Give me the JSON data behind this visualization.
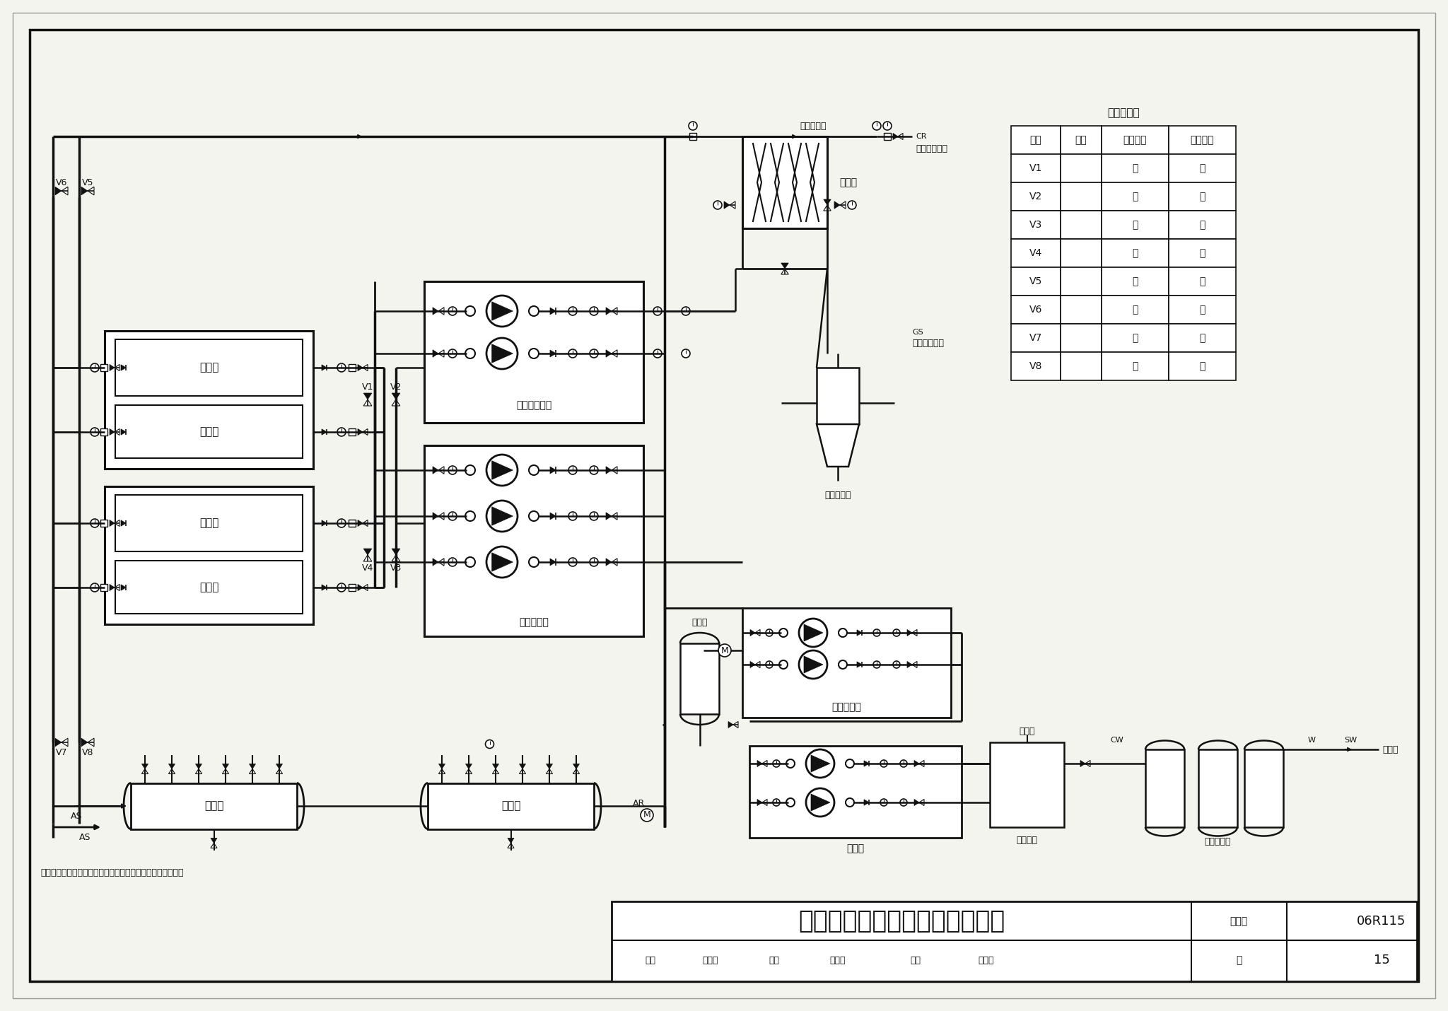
{
  "title": "地源侧间接利用热泵系统原理图",
  "figure_number": "06R115",
  "page": "15",
  "note": "注：适用于水源水质不能符合规范要求时在水源侧加换热器。",
  "valve_table_title": "阀门切换表",
  "valve_rows": [
    [
      "阀门",
      "工况",
      "夏季供冷",
      "冬季供热"
    ],
    [
      "V1",
      "",
      "开",
      "关"
    ],
    [
      "V2",
      "",
      "关",
      "开"
    ],
    [
      "V3",
      "",
      "开",
      "关"
    ],
    [
      "V4",
      "",
      "关",
      "开"
    ],
    [
      "V5",
      "",
      "开",
      "关"
    ],
    [
      "V6",
      "",
      "关",
      "开"
    ],
    [
      "V7",
      "",
      "开",
      "关"
    ],
    [
      "V8",
      "",
      "关",
      "开"
    ]
  ],
  "lc": "#111111",
  "bg": "#f4f4ee"
}
